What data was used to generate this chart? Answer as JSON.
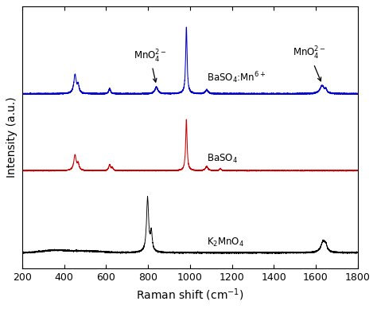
{
  "xmin": 200,
  "xmax": 1800,
  "xlabel": "Raman shift (cm$^{-1}$)",
  "ylabel": "Intensity (a.u.)",
  "colors": {
    "black": "#000000",
    "red": "#cc0000",
    "blue": "#0000cc"
  },
  "offsets": {
    "black": 0.04,
    "red": 0.36,
    "blue": 0.66
  },
  "scales": {
    "black": 0.22,
    "red": 0.2,
    "blue": 0.26
  },
  "label_black": "K$_2$MnO$_4$",
  "label_red": "BaSO$_4$",
  "label_blue": "BaSO$_4$:Mn$^{6+}$",
  "annotation_left": "MnO$_4^{2-}$",
  "annotation_right": "MnO$_4^{2-}$",
  "noise_amplitude_black": 0.006,
  "noise_amplitude_red": 0.003,
  "noise_amplitude_blue": 0.004,
  "background_color": "#ffffff",
  "ylim": [
    -0.02,
    1.0
  ],
  "tick_fontsize": 9,
  "label_fontsize": 10,
  "annot_fontsize": 8.5
}
